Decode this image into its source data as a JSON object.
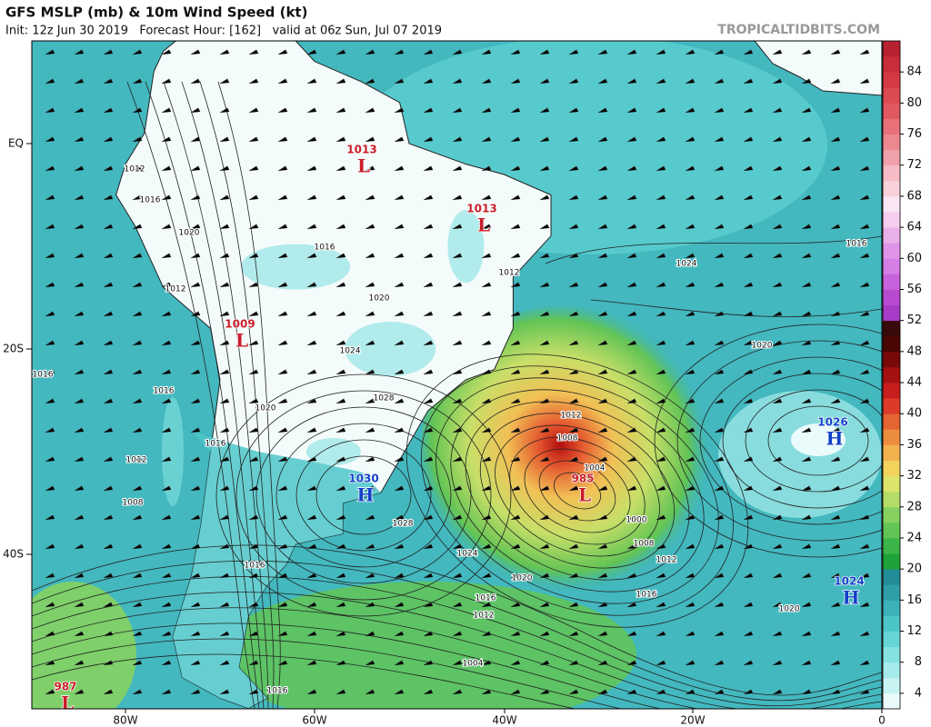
{
  "header": {
    "title": "GFS MSLP (mb) & 10m Wind Speed (kt)",
    "subtitle": "Init: 12z Jun 30 2019   Forecast Hour: [162]   valid at 06z Sun, Jul 07 2019",
    "site": "TROPICALTIDBITS.COM"
  },
  "map": {
    "lat_labels": [
      "EQ",
      "20S",
      "40S"
    ],
    "lon_labels": [
      "80W",
      "60W",
      "40W",
      "20W",
      "0"
    ],
    "centers": [
      {
        "symbol": "L",
        "value": "1013"
      },
      {
        "symbol": "L",
        "value": "1013"
      },
      {
        "symbol": "L",
        "value": "1009"
      },
      {
        "symbol": "H",
        "value": "1030"
      },
      {
        "symbol": "L",
        "value": "985"
      },
      {
        "symbol": "H",
        "value": "1026"
      },
      {
        "symbol": "H",
        "value": "1024"
      },
      {
        "symbol": "L",
        "value": "987"
      }
    ],
    "isobar_labels": [
      "1012",
      "1016",
      "1020",
      "1012",
      "1016",
      "1016",
      "1020",
      "1024",
      "1028",
      "1016",
      "1020",
      "1016",
      "1012",
      "1008",
      "1028",
      "1024",
      "1020",
      "1016",
      "1012",
      "1004",
      "1012",
      "1008",
      "1004",
      "1000",
      "1008",
      "1012",
      "1016",
      "1020",
      "1024",
      "1020",
      "1016",
      "1016",
      "1016",
      "1012"
    ]
  },
  "colorbar": {
    "ticks": [
      "4",
      "8",
      "12",
      "16",
      "20",
      "24",
      "28",
      "32",
      "36",
      "40",
      "44",
      "48",
      "52",
      "56",
      "60",
      "64",
      "68",
      "72",
      "76",
      "80",
      "84"
    ],
    "colors": [
      "#eafbfb",
      "#c8f3f3",
      "#a6ebeb",
      "#86e1e1",
      "#66d5d7",
      "#4cc5c9",
      "#3bb2b9",
      "#2e9fa9",
      "#238d99",
      "#1ea33a",
      "#3cb449",
      "#62c455",
      "#86d160",
      "#b4dc66",
      "#dde46c",
      "#f2d45c",
      "#f1b24e",
      "#ec8c3f",
      "#e56432",
      "#dc3b28",
      "#c81e1e",
      "#a51010",
      "#7a0a0a",
      "#4a0505",
      "#3a0a0a",
      "#a83cc8",
      "#b84ad0",
      "#c862dc",
      "#d57ee5",
      "#e094e8",
      "#eab0ea",
      "#f4cdef",
      "#f8e6f4",
      "#f8d0da",
      "#f5bcc6",
      "#f0a0aa",
      "#ec8890",
      "#e87078",
      "#e05860",
      "#dc4a52",
      "#d43a44",
      "#c82e3a",
      "#b82230"
    ]
  }
}
